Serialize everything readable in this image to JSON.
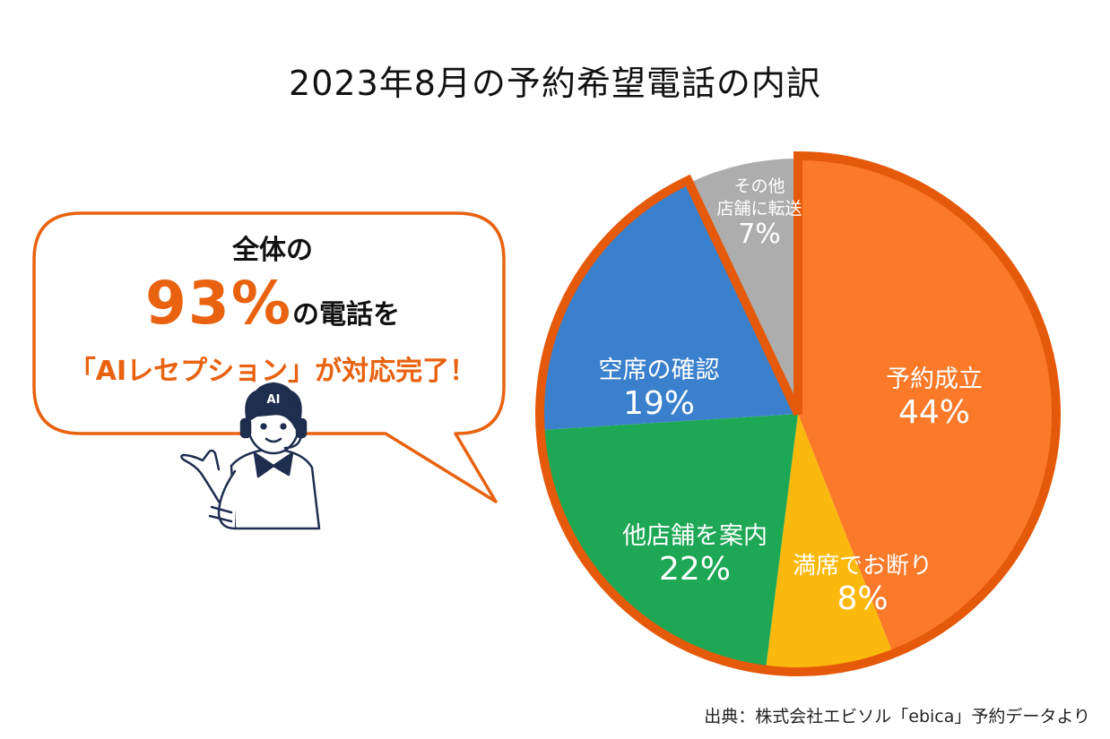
{
  "title": "2023年8月の予約希望電話の内訳",
  "callout": {
    "line1": "全体の",
    "big_value": "93%",
    "line2_rest": "の電話を",
    "line3": "「AIレセプション」が対応完了！"
  },
  "character": {
    "cap_text": "AI"
  },
  "source": "出典：株式会社エビソル「ebica」予約データより",
  "colors": {
    "orange": "#fb7a2a",
    "yellow": "#fbb90d",
    "green": "#1ea855",
    "blue": "#3a80cc",
    "gray": "#adadad",
    "highlight": "#e55a0a"
  },
  "chart_data": {
    "type": "pie",
    "title": "2023年8月の予約希望電話の内訳",
    "slices": [
      {
        "label": "予約成立",
        "value": 44,
        "value_label": "44%",
        "color": "#fb7a2a",
        "highlighted": true
      },
      {
        "label": "満席でお断り",
        "value": 8,
        "value_label": "8%",
        "color": "#fbb90d",
        "highlighted": true
      },
      {
        "label": "他店舗を案内",
        "value": 22,
        "value_label": "22%",
        "color": "#1ea855",
        "highlighted": true
      },
      {
        "label": "空席の確認",
        "value": 19,
        "value_label": "19%",
        "color": "#3a80cc",
        "highlighted": true
      },
      {
        "label_lines": [
          "その他",
          "店舗に転送"
        ],
        "value": 7,
        "value_label": "7%",
        "color": "#adadad",
        "highlighted": false
      }
    ]
  }
}
